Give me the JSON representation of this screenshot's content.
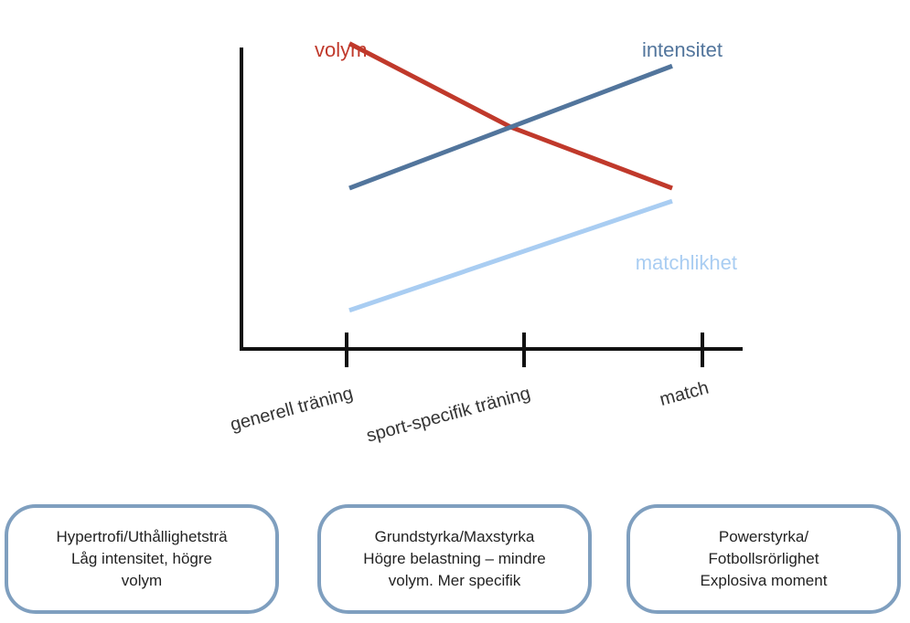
{
  "chart_data": {
    "type": "line",
    "categories": [
      "generell träning",
      "sport-specifik träning",
      "match"
    ],
    "series": [
      {
        "name": "volym",
        "color": "#c0392b",
        "values": [
          9.5,
          6.9,
          5.0
        ]
      },
      {
        "name": "intensitet",
        "color": "#52759c",
        "values": [
          5.0,
          6.9,
          8.8
        ]
      },
      {
        "name": "matchlikhet",
        "color": "#a9cdf2",
        "values": [
          1.2,
          2.9,
          4.6
        ]
      }
    ],
    "ylim": [
      0,
      10
    ],
    "grid": false,
    "title": "",
    "xlabel": "",
    "ylabel": ""
  },
  "boxes": [
    {
      "lines": [
        "Hypertrofi/Uthållighetsträ",
        "Låg intensitet, högre",
        "volym"
      ]
    },
    {
      "lines": [
        "Grundstyrka/Maxstyrka",
        "Högre belastning – mindre",
        "volym. Mer specifik"
      ]
    },
    {
      "lines": [
        "Powerstyrka/",
        "Fotbollsrörlighet",
        "Explosiva moment"
      ]
    }
  ]
}
